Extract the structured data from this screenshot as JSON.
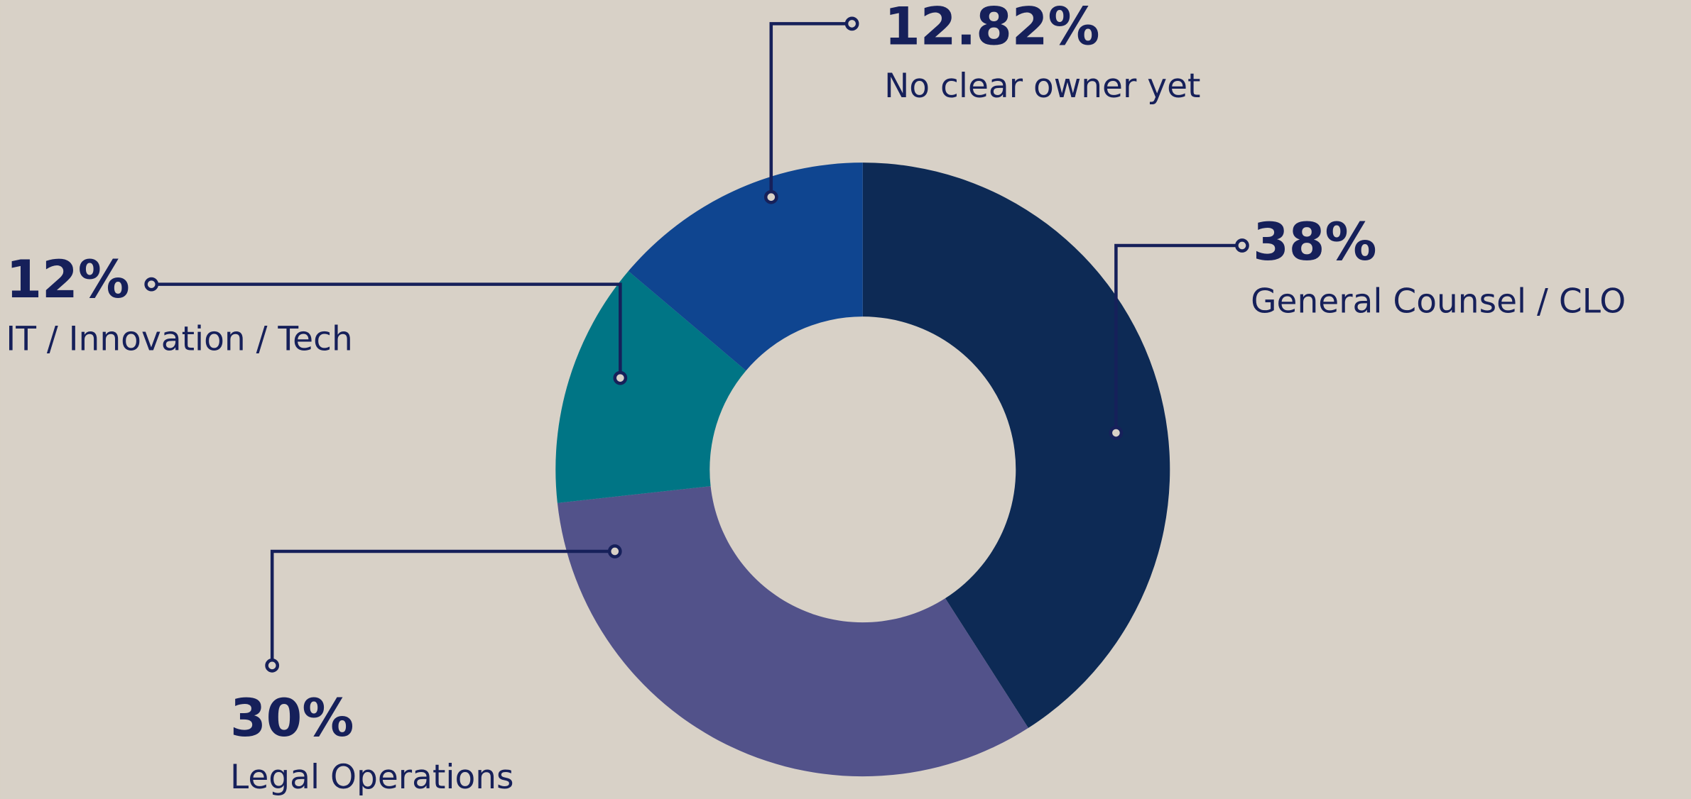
{
  "chart_data": {
    "type": "pie",
    "categories": [
      "General Counsel / CLO",
      "Legal Operations",
      "IT / Innovation / Tech",
      "No clear owner yet"
    ],
    "values": [
      38,
      30,
      12,
      12.82
    ],
    "value_labels": [
      "38%",
      "30%",
      "12%",
      "12.82%"
    ],
    "colors": [
      "#0d2a55",
      "#52528a",
      "#007585",
      "#0f4590"
    ],
    "donut": true
  }
}
